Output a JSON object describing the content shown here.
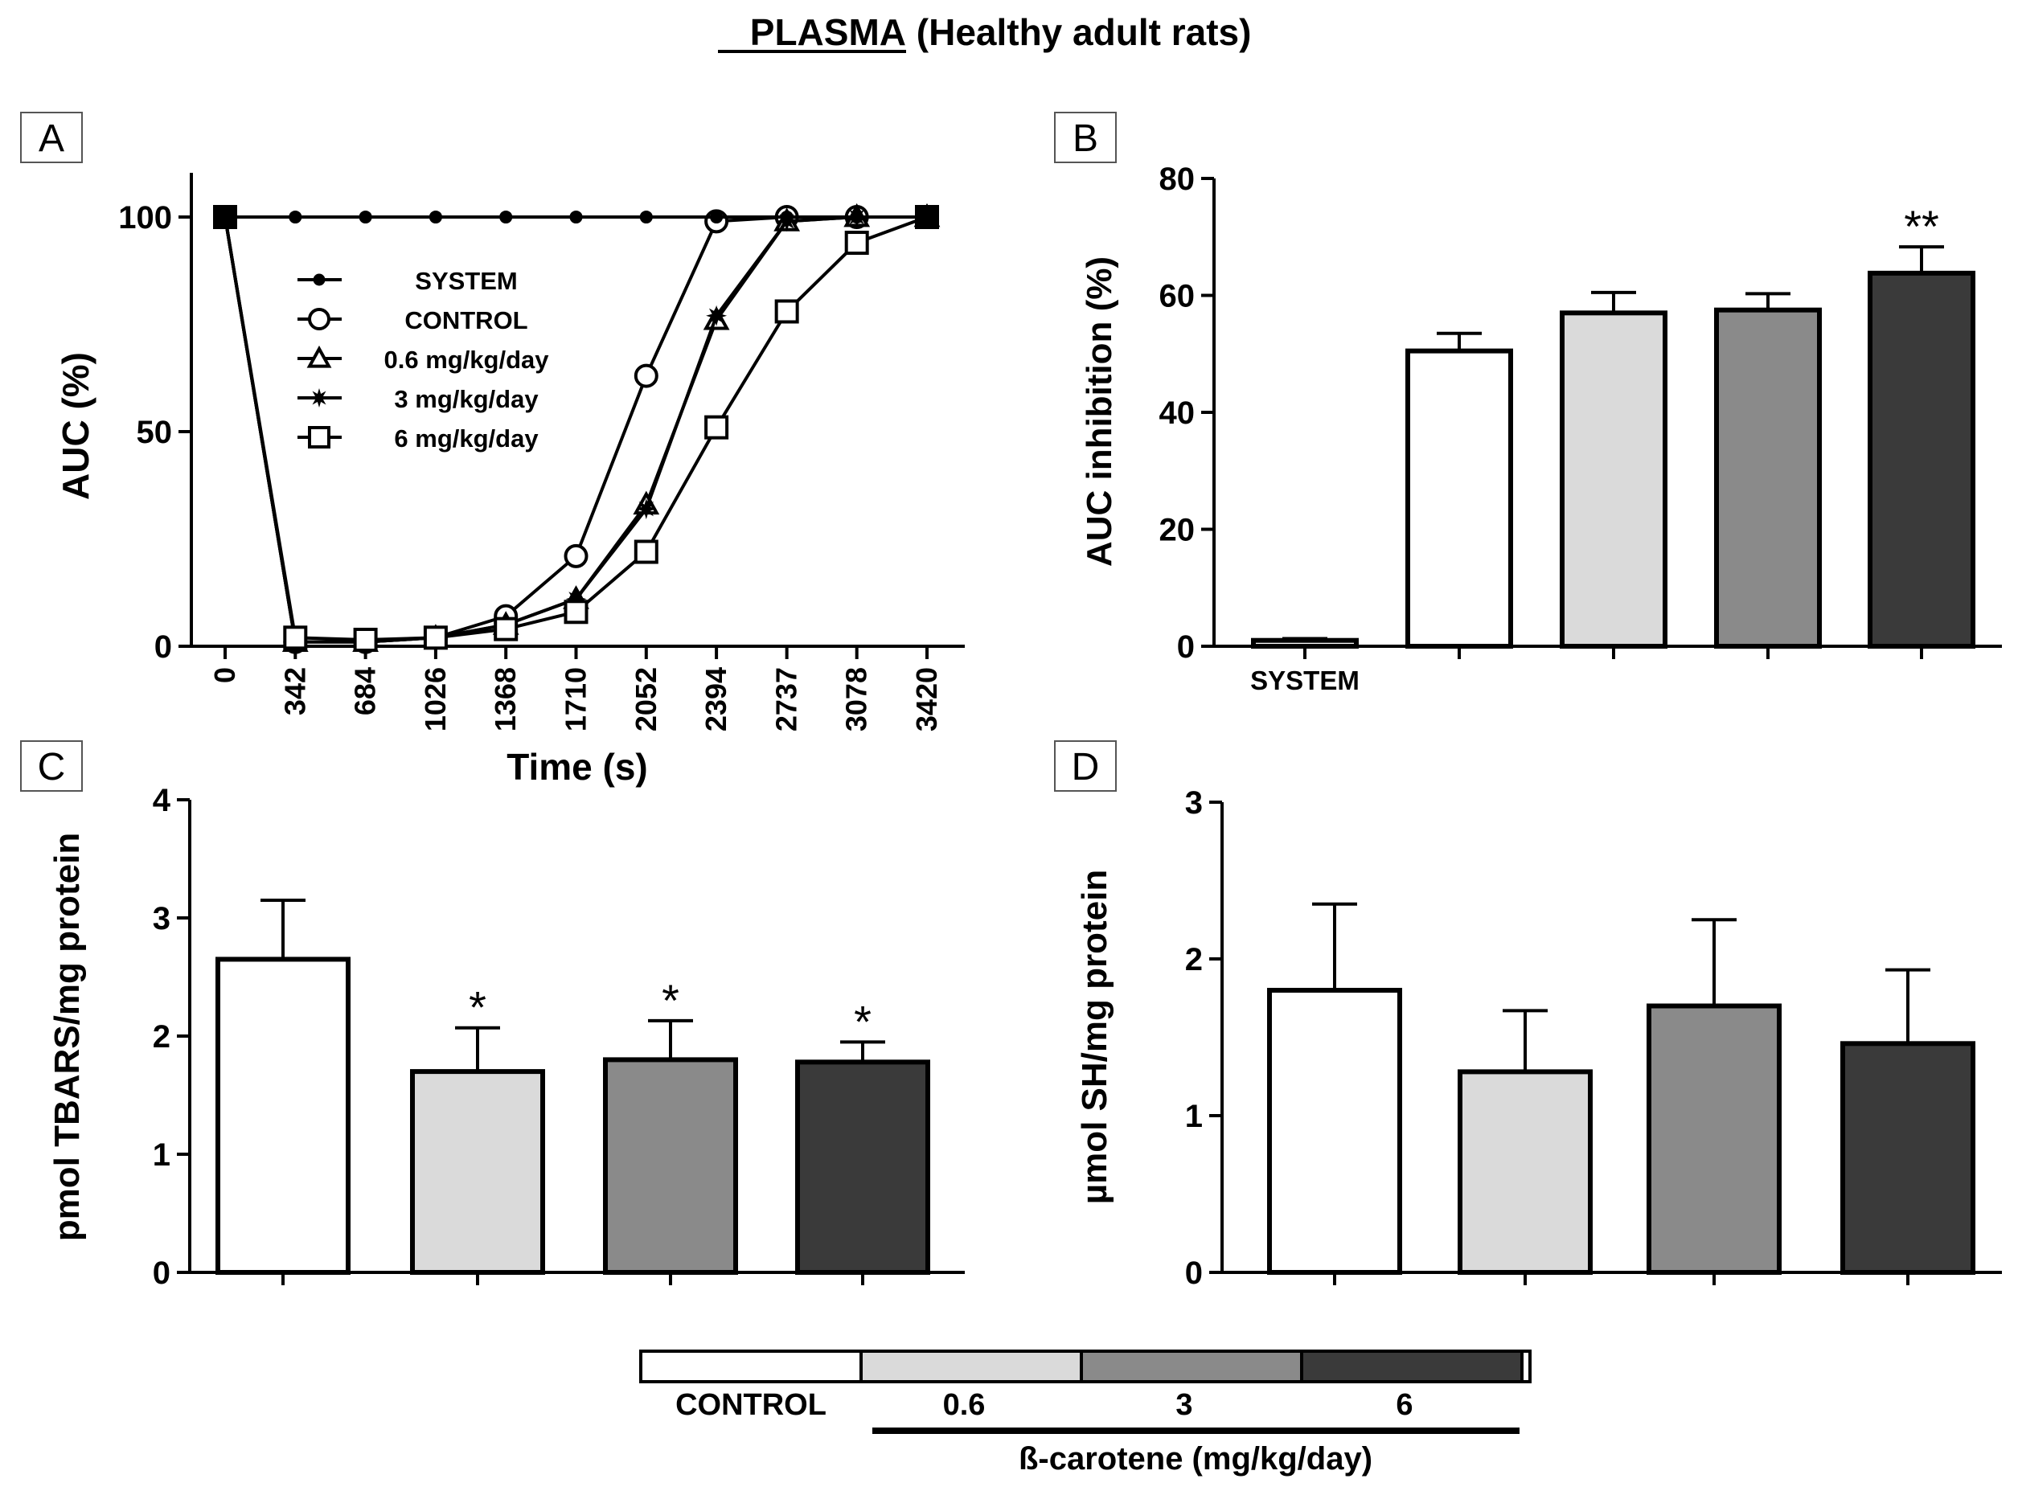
{
  "figure": {
    "title_main": "PLASMA",
    "title_rest": " (Healthy adult rats)"
  },
  "chart_data": [
    {
      "panel": "A",
      "type": "line",
      "xlabel": "Time (s)",
      "ylabel": "AUC (%)",
      "x": [
        0,
        342,
        684,
        1026,
        1368,
        1710,
        2052,
        2394,
        2737,
        3078,
        3420
      ],
      "x_tick_labels": [
        "0",
        "342",
        "684",
        "1026",
        "1368",
        "1710",
        "2052",
        "2394",
        "2737",
        "3078",
        "3420"
      ],
      "y_ticks": [
        0,
        50,
        100
      ],
      "y_tick_labels": [
        "0",
        "50",
        "100"
      ],
      "ylim": [
        0,
        110
      ],
      "legend_position": "inside-upper-left",
      "series": [
        {
          "name": "SYSTEM",
          "marker": "filled-circle",
          "values": [
            100,
            100,
            100,
            100,
            100,
            100,
            100,
            100,
            100,
            100,
            100
          ]
        },
        {
          "name": "CONTROL",
          "marker": "open-circle",
          "values": [
            100,
            1,
            1,
            2,
            7,
            21,
            63,
            99,
            100,
            100,
            100
          ]
        },
        {
          "name": "0.6 mg/kg/day",
          "marker": "open-triangle",
          "values": [
            100,
            1,
            1,
            2,
            5,
            11,
            33,
            76,
            99,
            100,
            100
          ]
        },
        {
          "name": "3 mg/kg/day",
          "marker": "star",
          "values": [
            100,
            1,
            1,
            2,
            5,
            11,
            32,
            77,
            99,
            100,
            100
          ]
        },
        {
          "name": "6 mg/kg/day",
          "marker": "open-square",
          "values": [
            100,
            2,
            1.5,
            2,
            4,
            8,
            22,
            51,
            78,
            94,
            100
          ]
        }
      ]
    },
    {
      "panel": "B",
      "type": "bar",
      "ylabel": "AUC inhibition (%)",
      "ylim": [
        0,
        80
      ],
      "y_ticks": [
        0,
        20,
        40,
        60,
        80
      ],
      "category_labels": [
        "SYSTEM",
        "",
        "",
        "",
        ""
      ],
      "values": [
        1,
        50.5,
        57,
        57.5,
        63.8
      ],
      "errors": [
        0.3,
        3,
        3.5,
        2.8,
        4.5
      ],
      "fills": [
        "#ffffff",
        "#ffffff",
        "#dadada",
        "#8a8a8a",
        "#3a3a3a"
      ],
      "annotations": [
        "",
        "",
        "",
        "",
        "**"
      ]
    },
    {
      "panel": "C",
      "type": "bar",
      "ylabel": "pmol TBARS/mg protein",
      "ylim": [
        0,
        4
      ],
      "y_ticks": [
        0,
        1,
        2,
        3,
        4
      ],
      "values": [
        2.65,
        1.7,
        1.8,
        1.78
      ],
      "errors": [
        0.5,
        0.37,
        0.33,
        0.17
      ],
      "fills": [
        "#ffffff",
        "#dadada",
        "#8a8a8a",
        "#3a3a3a"
      ],
      "annotations": [
        "",
        "*",
        "*",
        "*"
      ]
    },
    {
      "panel": "D",
      "type": "bar",
      "ylabel": "µmol SH/mg protein",
      "ylim": [
        0,
        3
      ],
      "y_ticks": [
        0,
        1,
        2,
        3
      ],
      "values": [
        1.8,
        1.28,
        1.7,
        1.46
      ],
      "errors": [
        0.55,
        0.39,
        0.55,
        0.47
      ],
      "fills": [
        "#ffffff",
        "#dadada",
        "#8a8a8a",
        "#3a3a3a"
      ],
      "annotations": [
        "",
        "",
        "",
        ""
      ]
    }
  ],
  "key": {
    "items": [
      {
        "label": "CONTROL",
        "fill": "#ffffff"
      },
      {
        "label": "0.6",
        "fill": "#dadada"
      },
      {
        "label": "3",
        "fill": "#8a8a8a"
      },
      {
        "label": "6",
        "fill": "#3a3a3a"
      }
    ],
    "group_label": "ß-carotene (mg/kg/day)"
  }
}
